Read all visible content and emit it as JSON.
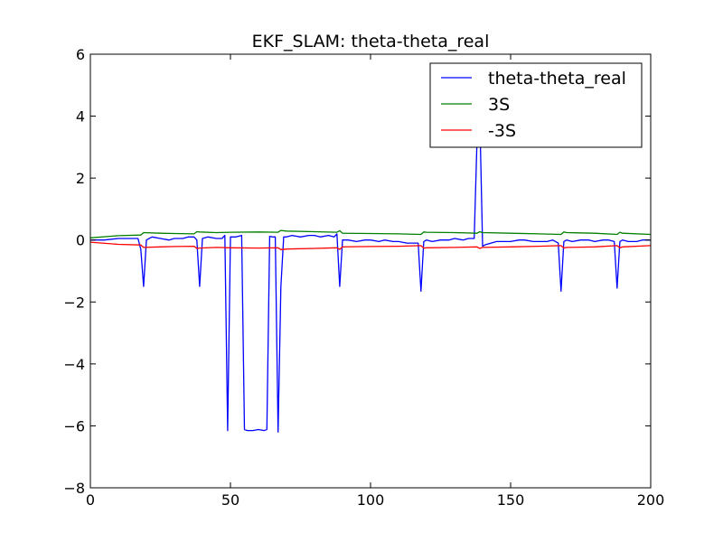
{
  "chart_data": {
    "type": "line",
    "title": "EKF_SLAM: theta-theta_real",
    "xlabel": "",
    "ylabel": "",
    "xlim": [
      0,
      200
    ],
    "ylim": [
      -8,
      6
    ],
    "x_ticks": [
      0,
      50,
      100,
      150,
      200
    ],
    "y_ticks": [
      -8,
      -6,
      -4,
      -2,
      0,
      2,
      4,
      6
    ],
    "grid": false,
    "legend_position": "top-right",
    "series": [
      {
        "name": "theta-theta_real",
        "color": "#0000ff",
        "x": [
          0,
          5,
          10,
          15,
          17,
          18,
          19,
          20,
          22,
          25,
          28,
          30,
          33,
          35,
          37,
          38,
          39,
          40,
          42,
          45,
          47,
          48,
          49,
          50,
          52,
          54,
          55,
          56,
          58,
          60,
          62,
          63,
          64,
          65,
          66,
          67,
          68,
          69,
          70,
          72,
          75,
          78,
          80,
          82,
          85,
          87,
          88,
          89,
          90,
          92,
          95,
          98,
          100,
          103,
          105,
          108,
          110,
          113,
          115,
          117,
          118,
          119,
          120,
          122,
          125,
          128,
          130,
          133,
          135,
          137,
          138,
          139,
          140,
          141,
          143,
          145,
          148,
          150,
          153,
          155,
          158,
          160,
          163,
          165,
          167,
          168,
          169,
          170,
          172,
          175,
          178,
          180,
          183,
          185,
          187,
          188,
          189,
          190,
          192,
          195,
          197,
          200
        ],
        "y": [
          0.0,
          0.0,
          0.05,
          0.05,
          0.05,
          -0.3,
          -1.5,
          0.0,
          0.1,
          0.05,
          0.0,
          0.05,
          0.05,
          0.1,
          0.1,
          0.0,
          -1.5,
          0.05,
          0.1,
          0.05,
          0.05,
          0.15,
          -6.15,
          0.1,
          0.1,
          0.15,
          -6.12,
          -6.15,
          -6.15,
          -6.12,
          -6.15,
          -6.12,
          0.12,
          0.1,
          0.1,
          -6.2,
          -1.5,
          0.1,
          0.1,
          0.15,
          0.1,
          0.15,
          0.15,
          0.1,
          0.15,
          0.1,
          0.2,
          -1.5,
          0.0,
          0.0,
          -0.05,
          0.0,
          0.0,
          -0.05,
          0.0,
          -0.05,
          -0.05,
          -0.1,
          -0.1,
          -0.1,
          -1.65,
          -0.05,
          0.0,
          -0.05,
          0.0,
          0.0,
          0.05,
          0.0,
          0.05,
          0.05,
          3.2,
          4.0,
          -0.2,
          -0.15,
          -0.1,
          -0.05,
          -0.05,
          -0.05,
          0.0,
          0.0,
          -0.05,
          -0.05,
          -0.05,
          0.0,
          -0.1,
          -1.65,
          -0.05,
          0.0,
          -0.05,
          0.0,
          0.0,
          -0.05,
          0.0,
          0.0,
          -0.05,
          -1.55,
          -0.05,
          0.0,
          -0.05,
          -0.05,
          0.0,
          0.0
        ]
      },
      {
        "name": "3S",
        "color": "#008000",
        "x": [
          0,
          10,
          18,
          19,
          25,
          30,
          37,
          38,
          39,
          45,
          50,
          60,
          67,
          68,
          70,
          80,
          88,
          89,
          90,
          100,
          110,
          118,
          119,
          120,
          130,
          138,
          139,
          140,
          150,
          160,
          168,
          169,
          170,
          180,
          188,
          189,
          190,
          200
        ],
        "y": [
          0.07,
          0.14,
          0.16,
          0.24,
          0.22,
          0.21,
          0.2,
          0.27,
          0.26,
          0.24,
          0.25,
          0.26,
          0.25,
          0.31,
          0.29,
          0.27,
          0.25,
          0.3,
          0.22,
          0.21,
          0.2,
          0.18,
          0.26,
          0.25,
          0.24,
          0.22,
          0.27,
          0.24,
          0.22,
          0.2,
          0.18,
          0.26,
          0.24,
          0.22,
          0.18,
          0.25,
          0.22,
          0.18
        ]
      },
      {
        "name": "-3S",
        "color": "#ff0000",
        "x": [
          0,
          10,
          18,
          19,
          25,
          30,
          37,
          38,
          39,
          45,
          50,
          60,
          67,
          68,
          70,
          80,
          88,
          89,
          90,
          100,
          110,
          118,
          119,
          120,
          130,
          138,
          139,
          140,
          150,
          160,
          168,
          169,
          170,
          180,
          188,
          189,
          190,
          200
        ],
        "y": [
          -0.07,
          -0.14,
          -0.16,
          -0.24,
          -0.22,
          -0.21,
          -0.2,
          -0.27,
          -0.26,
          -0.24,
          -0.25,
          -0.26,
          -0.25,
          -0.31,
          -0.29,
          -0.27,
          -0.25,
          -0.3,
          -0.22,
          -0.21,
          -0.2,
          -0.18,
          -0.26,
          -0.25,
          -0.24,
          -0.22,
          -0.27,
          -0.24,
          -0.22,
          -0.2,
          -0.18,
          -0.26,
          -0.24,
          -0.22,
          -0.18,
          -0.25,
          -0.22,
          -0.18
        ]
      }
    ]
  }
}
